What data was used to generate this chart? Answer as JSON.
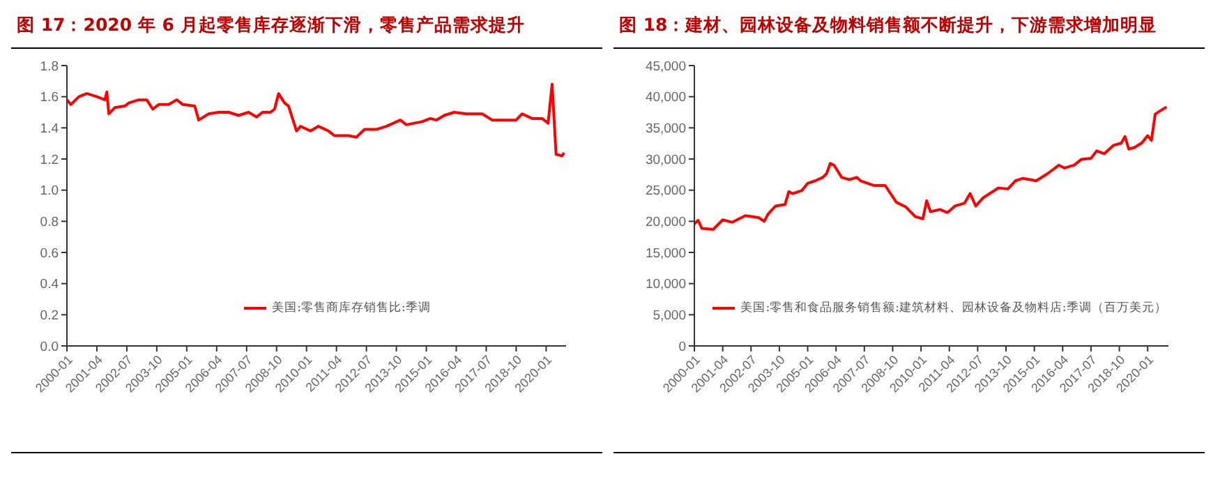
{
  "chart_data": [
    {
      "type": "line",
      "title": "图 17：2020 年 6 月起零售库存逐渐下滑，零售产品需求提升",
      "legend": "bottom",
      "grid": false,
      "marker": "none",
      "line_style": "solid",
      "xlim": [
        "2000-01",
        "2020-11"
      ],
      "xticks": [
        "2000-01",
        "2001-04",
        "2002-07",
        "2003-10",
        "2005-01",
        "2006-04",
        "2007-07",
        "2008-10",
        "2010-01",
        "2011-04",
        "2012-07",
        "2013-10",
        "2015-01",
        "2016-04",
        "2017-07",
        "2018-10",
        "2020-01"
      ],
      "ylim": [
        0,
        1.8
      ],
      "yticks": [
        {
          "value": 0,
          "label": "0.0"
        },
        {
          "value": 0.2,
          "label": "0.2"
        },
        {
          "value": 0.4,
          "label": "0.4"
        },
        {
          "value": 0.6,
          "label": "0.6"
        },
        {
          "value": 0.8,
          "label": "0.8"
        },
        {
          "value": 1,
          "label": "1.0"
        },
        {
          "value": 1.2,
          "label": "1.2"
        },
        {
          "value": 1.4,
          "label": "1.4"
        },
        {
          "value": 1.6,
          "label": "1.6"
        },
        {
          "value": 1.8,
          "label": "1.8"
        }
      ],
      "series": [
        {
          "name": "美国:零售商库存销售比:季调",
          "color": "#ff0000",
          "x": [
            "2000-01",
            "2000-03",
            "2000-07",
            "2000-11",
            "2001-04",
            "2001-08",
            "2001-09",
            "2001-10",
            "2002-01",
            "2002-06",
            "2002-08",
            "2003-01",
            "2003-05",
            "2003-08",
            "2003-11",
            "2004-04",
            "2004-08",
            "2004-11",
            "2005-05",
            "2005-07",
            "2005-12",
            "2006-05",
            "2006-10",
            "2007-03",
            "2007-08",
            "2007-12",
            "2008-03",
            "2008-07",
            "2008-09",
            "2008-11",
            "2009-02",
            "2009-04",
            "2009-08",
            "2009-10",
            "2010-03",
            "2010-07",
            "2010-12",
            "2011-03",
            "2011-10",
            "2012-02",
            "2012-06",
            "2012-12",
            "2013-05",
            "2013-12",
            "2014-03",
            "2014-11",
            "2015-03",
            "2015-06",
            "2015-10",
            "2016-03",
            "2016-09",
            "2017-05",
            "2017-10",
            "2018-03",
            "2018-10",
            "2019-01",
            "2019-06",
            "2019-11",
            "2020-02",
            "2020-04",
            "2020-06",
            "2020-09",
            "2020-10"
          ],
          "values": [
            1.58,
            1.55,
            1.6,
            1.62,
            1.6,
            1.58,
            1.63,
            1.49,
            1.53,
            1.54,
            1.56,
            1.58,
            1.58,
            1.52,
            1.55,
            1.55,
            1.58,
            1.55,
            1.54,
            1.45,
            1.49,
            1.5,
            1.5,
            1.48,
            1.5,
            1.47,
            1.5,
            1.5,
            1.52,
            1.62,
            1.56,
            1.54,
            1.38,
            1.41,
            1.38,
            1.41,
            1.38,
            1.35,
            1.35,
            1.34,
            1.39,
            1.39,
            1.41,
            1.45,
            1.42,
            1.44,
            1.46,
            1.45,
            1.48,
            1.5,
            1.49,
            1.49,
            1.45,
            1.45,
            1.45,
            1.49,
            1.46,
            1.46,
            1.43,
            1.68,
            1.23,
            1.22,
            1.24
          ]
        }
      ]
    },
    {
      "type": "line",
      "title": "图 18：建材、园林设备及物料销售额不断提升，下游需求增加明显",
      "legend": "bottom",
      "grid": false,
      "marker": "none",
      "line_style": "solid",
      "xlim": [
        "2000-01",
        "2020-12"
      ],
      "xticks": [
        "2000-01",
        "2001-04",
        "2002-07",
        "2003-10",
        "2005-01",
        "2006-04",
        "2007-07",
        "2008-10",
        "2010-01",
        "2011-04",
        "2012-07",
        "2013-10",
        "2015-01",
        "2016-04",
        "2017-07",
        "2018-10",
        "2020-01"
      ],
      "ylim": [
        0,
        45000
      ],
      "yticks": [
        {
          "value": 0,
          "label": "0"
        },
        {
          "value": 5000,
          "label": "5,000"
        },
        {
          "value": 10000,
          "label": "10,000"
        },
        {
          "value": 15000,
          "label": "15,000"
        },
        {
          "value": 20000,
          "label": "20,000"
        },
        {
          "value": 25000,
          "label": "25,000"
        },
        {
          "value": 30000,
          "label": "30,000"
        },
        {
          "value": 35000,
          "label": "35,000"
        },
        {
          "value": 40000,
          "label": "40,000"
        },
        {
          "value": 45000,
          "label": "45,000"
        }
      ],
      "series": [
        {
          "name": "美国:零售和食品服务销售额:建筑材料、园林设备及物料店:季调（百万美元）",
          "color": "#ff0000",
          "x": [
            "2000-01",
            "2000-03",
            "2000-05",
            "2000-11",
            "2001-04",
            "2001-09",
            "2002-04",
            "2002-11",
            "2003-02",
            "2003-04",
            "2003-08",
            "2004-01",
            "2004-03",
            "2004-05",
            "2004-10",
            "2005-01",
            "2005-05",
            "2005-09",
            "2005-11",
            "2006-01",
            "2006-03",
            "2006-07",
            "2006-11",
            "2007-03",
            "2007-05",
            "2007-12",
            "2008-06",
            "2008-12",
            "2009-05",
            "2009-10",
            "2010-02",
            "2010-04",
            "2010-06",
            "2010-11",
            "2011-03",
            "2011-07",
            "2011-12",
            "2012-03",
            "2012-06",
            "2012-10",
            "2013-06",
            "2013-11",
            "2014-03",
            "2014-07",
            "2015-02",
            "2015-08",
            "2016-02",
            "2016-05",
            "2016-10",
            "2017-02",
            "2017-07",
            "2017-10",
            "2018-02",
            "2018-07",
            "2018-11",
            "2019-01",
            "2019-03",
            "2019-06",
            "2019-10",
            "2020-01",
            "2020-03",
            "2020-05",
            "2020-07",
            "2020-11"
          ],
          "values": [
            19600,
            20150,
            18850,
            18700,
            20230,
            19850,
            20900,
            20600,
            20000,
            21150,
            22450,
            22700,
            24750,
            24450,
            24950,
            26100,
            26500,
            27050,
            27650,
            29300,
            29000,
            27050,
            26700,
            27050,
            26500,
            25750,
            25750,
            23050,
            22300,
            20750,
            20400,
            23300,
            21550,
            21900,
            21400,
            22450,
            22900,
            24450,
            22450,
            23800,
            25350,
            25200,
            26500,
            26900,
            26500,
            27650,
            29000,
            28550,
            29000,
            29950,
            30100,
            31300,
            30850,
            32200,
            32550,
            33600,
            31600,
            31850,
            32600,
            33750,
            33000,
            37200,
            37600,
            38350
          ]
        }
      ]
    }
  ]
}
